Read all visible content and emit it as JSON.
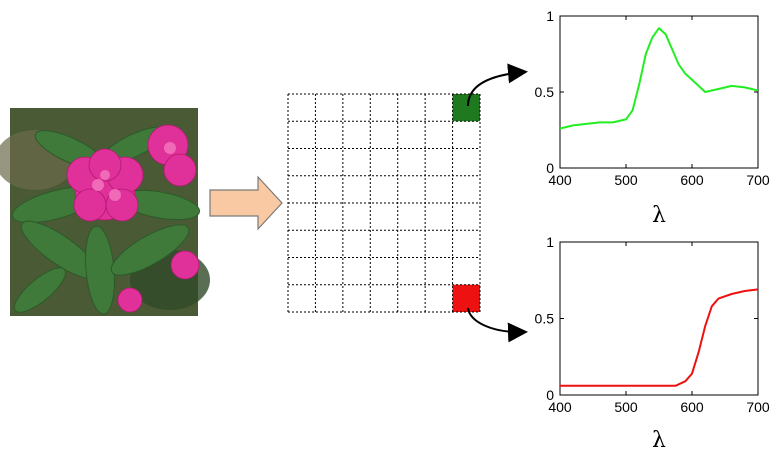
{
  "photo": {
    "subject": "pink rhododendron flower with green leaves"
  },
  "colors": {
    "arrow_fill": "#f8c9a2",
    "arrow_stroke": "#7a7a7a",
    "green_cell": "#1f7a1f",
    "red_cell": "#ee1111",
    "green_curve": "#22ee22",
    "red_curve": "#ee1111"
  },
  "grid": {
    "rows": 8,
    "cols": 7,
    "highlighted": [
      {
        "row": 0,
        "col": 6,
        "color": "green"
      },
      {
        "row": 7,
        "col": 6,
        "color": "red"
      }
    ]
  },
  "chart_data": [
    {
      "type": "line",
      "series": [
        {
          "color": "#22ee22",
          "x": [
            400,
            420,
            440,
            460,
            480,
            500,
            510,
            520,
            530,
            540,
            550,
            560,
            570,
            580,
            590,
            600,
            610,
            620,
            640,
            660,
            680,
            700
          ],
          "values": [
            0.26,
            0.28,
            0.29,
            0.3,
            0.3,
            0.32,
            0.38,
            0.55,
            0.75,
            0.86,
            0.92,
            0.88,
            0.78,
            0.68,
            0.62,
            0.58,
            0.54,
            0.5,
            0.52,
            0.54,
            0.53,
            0.51
          ]
        }
      ],
      "xlabel": "λ",
      "xlim": [
        400,
        700
      ],
      "ylim": [
        0,
        1
      ],
      "xticks": [
        "400",
        "500",
        "600",
        "700"
      ],
      "yticks": [
        "0",
        "0.5",
        "1"
      ]
    },
    {
      "type": "line",
      "series": [
        {
          "color": "#ee1111",
          "x": [
            400,
            450,
            500,
            550,
            575,
            590,
            600,
            610,
            620,
            630,
            640,
            660,
            680,
            700
          ],
          "values": [
            0.06,
            0.06,
            0.06,
            0.06,
            0.06,
            0.09,
            0.14,
            0.28,
            0.45,
            0.58,
            0.63,
            0.66,
            0.68,
            0.69
          ]
        }
      ],
      "xlabel": "λ",
      "xlim": [
        400,
        700
      ],
      "ylim": [
        0,
        1
      ],
      "xticks": [
        "400",
        "500",
        "600",
        "700"
      ],
      "yticks": [
        "0",
        "0.5",
        "1"
      ]
    }
  ]
}
